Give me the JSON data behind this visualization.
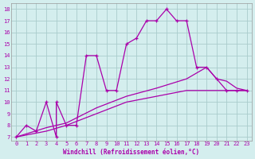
{
  "xlabel": "Windchill (Refroidissement éolien,°C)",
  "background_color": "#d4eeee",
  "line_color": "#aa00aa",
  "grid_color": "#aacccc",
  "xlim": [
    -0.5,
    23.5
  ],
  "ylim": [
    6.7,
    18.5
  ],
  "xticks": [
    0,
    1,
    2,
    3,
    4,
    5,
    6,
    7,
    8,
    9,
    10,
    11,
    12,
    13,
    14,
    15,
    16,
    17,
    18,
    19,
    20,
    21,
    22,
    23
  ],
  "yticks": [
    7,
    8,
    9,
    10,
    11,
    12,
    13,
    14,
    15,
    16,
    17,
    18
  ],
  "main_x": [
    0,
    1,
    2,
    3,
    4,
    4,
    5,
    6,
    7,
    8,
    9,
    10,
    11,
    12,
    13,
    14,
    15,
    16,
    17,
    18,
    19,
    20,
    21,
    22,
    23
  ],
  "main_y": [
    7,
    8,
    7.5,
    10,
    7,
    10,
    8,
    8,
    14,
    14,
    11,
    11,
    15,
    15.5,
    17,
    17,
    18,
    17,
    17,
    13,
    13,
    12,
    11,
    11,
    11
  ],
  "trend1_x": [
    0,
    3,
    5,
    8,
    11,
    14,
    17,
    20,
    23
  ],
  "trend1_y": [
    7,
    7.5,
    8,
    9,
    10,
    10.5,
    11,
    11,
    11
  ],
  "trend2_x": [
    0,
    3,
    5,
    8,
    11,
    14,
    17,
    19,
    20,
    21,
    22,
    23
  ],
  "trend2_y": [
    7,
    7.8,
    8.2,
    9.5,
    10.5,
    11.2,
    12,
    13,
    12,
    11.8,
    11.2,
    11
  ]
}
